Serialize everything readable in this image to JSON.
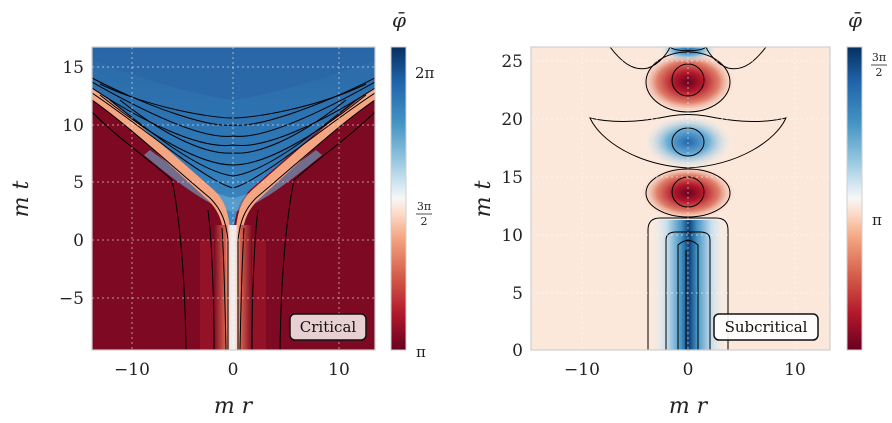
{
  "colorbar_title": "φ̄",
  "chart_data": [
    {
      "type": "heatmap",
      "annotation": "Critical",
      "xlabel": "m r",
      "ylabel": "m t",
      "xlim": [
        -13.5,
        13.5
      ],
      "ylim": [
        -9.5,
        16.5
      ],
      "xticks": [
        -10,
        0,
        10
      ],
      "xtick_labels": [
        "−10",
        "0",
        "10"
      ],
      "yticks": [
        -5,
        0,
        5,
        10,
        15
      ],
      "ytick_labels": [
        "−5",
        "0",
        "5",
        "10",
        "15"
      ],
      "colorbar": {
        "range": [
          "π",
          "2π"
        ],
        "ticks": [
          "π",
          "3π/2",
          "2π"
        ]
      },
      "grid": true
    },
    {
      "type": "heatmap",
      "annotation": "Subcritical",
      "xlabel": "m r",
      "ylabel": "m t",
      "xlim": [
        -13.5,
        13.5
      ],
      "ylim": [
        0,
        26.5
      ],
      "xticks": [
        -10,
        0,
        10
      ],
      "xtick_labels": [
        "−10",
        "0",
        "10"
      ],
      "yticks": [
        0,
        5,
        10,
        15,
        20,
        25
      ],
      "ytick_labels": [
        "0",
        "5",
        "10",
        "15",
        "20",
        "25"
      ],
      "colorbar": {
        "range": [
          "π",
          "3π/2"
        ],
        "ticks": [
          "π",
          "3π/2"
        ]
      },
      "grid": true
    }
  ]
}
